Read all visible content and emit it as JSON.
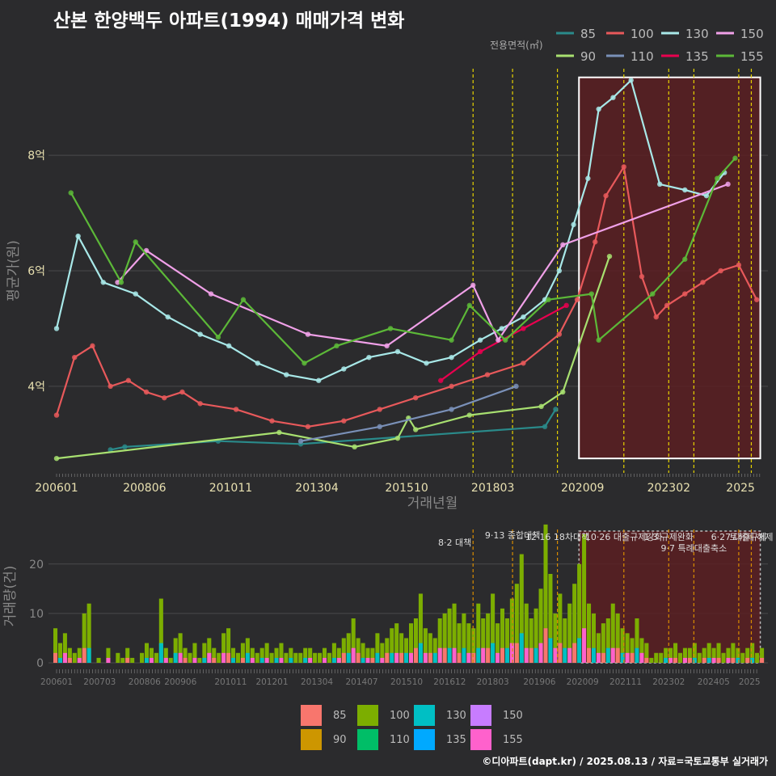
{
  "title": "산본 한양백두 아파트(1994) 매매가격 변화",
  "legend_title": "전용면적(㎡)",
  "footer": "©디아파트(dapt.kr) / 2025.08.13 / 자료=국토교통부 실거래가",
  "colors": {
    "background": "#2b2b2d",
    "grid": "#4a4a4c",
    "policy_line": "#e6d200",
    "policy_line_bottom": "#d98c00",
    "highlight_fill": "#5a1f22",
    "highlight_border": "#ffffff"
  },
  "chart_data": [
    {
      "type": "line",
      "title": "산본 한양백두 아파트(1994) 매매가격 변화",
      "xlabel": "거래년월",
      "ylabel": "평균가(원)",
      "x_ticks": [
        "200601",
        "200806",
        "201011",
        "201304",
        "201510",
        "201803",
        "202009",
        "202302",
        "2025"
      ],
      "y_ticks": [
        "4억",
        "6억",
        "8억"
      ],
      "ylim": [
        2.5,
        9.5
      ],
      "y_unit": "억",
      "legend_placement": "top-right",
      "series": [
        {
          "name": "85",
          "color": "#2a8a8a",
          "x": [
            2007.5,
            2007.9,
            2010.5,
            2012.8,
            2019.6,
            2019.9
          ],
          "y": [
            2.9,
            2.95,
            3.05,
            3.0,
            3.3,
            3.6
          ]
        },
        {
          "name": "90",
          "color": "#a8e070",
          "x": [
            2006.0,
            2012.2,
            2014.3,
            2015.5,
            2015.8,
            2016.0,
            2017.5,
            2019.5,
            2020.1,
            2021.4
          ],
          "y": [
            2.75,
            3.2,
            2.95,
            3.1,
            3.45,
            3.25,
            3.5,
            3.65,
            3.9,
            6.25
          ]
        },
        {
          "name": "100",
          "color": "#e8595b",
          "x": [
            2006.0,
            2006.5,
            2007.0,
            2007.5,
            2008.0,
            2008.5,
            2009.0,
            2009.5,
            2010.0,
            2011.0,
            2012.0,
            2013.0,
            2014.0,
            2015.0,
            2016.0,
            2017.0,
            2018.0,
            2019.0,
            2020.0,
            2020.5,
            2021.0,
            2021.3,
            2021.8,
            2022.3,
            2022.7,
            2023.0,
            2023.5,
            2024.0,
            2024.5,
            2025.0,
            2025.5
          ],
          "y": [
            3.5,
            4.5,
            4.7,
            4.0,
            4.1,
            3.9,
            3.8,
            3.9,
            3.7,
            3.6,
            3.4,
            3.3,
            3.4,
            3.6,
            3.8,
            4.0,
            4.2,
            4.4,
            4.9,
            5.5,
            6.5,
            7.3,
            7.8,
            5.9,
            5.2,
            5.4,
            5.6,
            5.8,
            6.0,
            6.1,
            5.5
          ]
        },
        {
          "name": "110",
          "color": "#7a90b8",
          "x": [
            2012.8,
            2015.0,
            2017.0,
            2018.8
          ],
          "y": [
            3.05,
            3.3,
            3.6,
            4.0
          ]
        },
        {
          "name": "130",
          "color": "#a8e8e8",
          "x": [
            2006.0,
            2006.6,
            2007.3,
            2008.2,
            2009.1,
            2010.0,
            2010.8,
            2011.6,
            2012.4,
            2013.3,
            2014.0,
            2014.7,
            2015.5,
            2016.3,
            2017.0,
            2017.8,
            2018.4,
            2019.0,
            2019.6,
            2020.0,
            2020.4,
            2020.8,
            2021.1,
            2021.5,
            2022.0,
            2022.8,
            2023.5,
            2024.1,
            2024.6
          ],
          "y": [
            5.0,
            6.6,
            5.8,
            5.6,
            5.2,
            4.9,
            4.7,
            4.4,
            4.2,
            4.1,
            4.3,
            4.5,
            4.6,
            4.4,
            4.5,
            4.8,
            5.0,
            5.2,
            5.5,
            6.0,
            6.8,
            7.6,
            8.8,
            9.0,
            9.3,
            7.5,
            7.4,
            7.3,
            7.7
          ]
        },
        {
          "name": "135",
          "color": "#e8004f",
          "x": [
            2016.7,
            2017.8,
            2019.0,
            2020.2
          ],
          "y": [
            4.1,
            4.6,
            5.0,
            5.4
          ]
        },
        {
          "name": "150",
          "color": "#f0a0e8",
          "x": [
            2007.7,
            2008.5,
            2010.3,
            2013.0,
            2015.2,
            2017.6,
            2018.3,
            2020.1,
            2024.7
          ],
          "y": [
            5.8,
            6.35,
            5.6,
            4.9,
            4.7,
            5.75,
            4.8,
            6.45,
            7.5
          ]
        },
        {
          "name": "155",
          "color": "#5cb838",
          "x": [
            2006.4,
            2007.8,
            2008.2,
            2010.5,
            2011.2,
            2012.9,
            2013.8,
            2015.3,
            2017.0,
            2017.5,
            2018.5,
            2019.7,
            2020.9,
            2021.1,
            2022.6,
            2023.5,
            2024.4,
            2024.9
          ],
          "y": [
            7.35,
            5.8,
            6.5,
            4.85,
            5.5,
            4.4,
            4.7,
            5.0,
            4.8,
            5.4,
            4.8,
            5.5,
            5.6,
            4.8,
            5.6,
            6.2,
            7.6,
            7.95
          ]
        }
      ],
      "policy_markers": [
        {
          "x": 2017.6,
          "label": "8·2 대책"
        },
        {
          "x": 2018.7,
          "label": "9·13 종합대책"
        },
        {
          "x": 2019.95,
          "label": "12·16 18차대책"
        },
        {
          "x": 2021.8,
          "label": "10·26 대출규제강화"
        },
        {
          "x": 2023.05,
          "label": "1·3 규제완화"
        },
        {
          "x": 2023.75,
          "label": "9·7 특례대출축소"
        },
        {
          "x": 2025.0,
          "label": "6·27 대출규제"
        },
        {
          "x": 2025.35,
          "label": "토허제 해제"
        }
      ],
      "highlight_range": [
        "202007",
        "2025"
      ]
    },
    {
      "type": "bar",
      "xlabel": "",
      "ylabel": "거래량(건)",
      "x_ticks": [
        "200601",
        "200703",
        "200806",
        "200906",
        "201011",
        "201201",
        "201304",
        "201407",
        "201510",
        "201612",
        "201803",
        "201906",
        "202009",
        "202111",
        "202302",
        "202405",
        "2025"
      ],
      "y_ticks": [
        "0",
        "10",
        "20"
      ],
      "ylim": [
        0,
        27
      ],
      "stacked": true,
      "legend_placement": "bottom",
      "legend": [
        {
          "name": "85",
          "color": "#f8766d"
        },
        {
          "name": "90",
          "color": "#cd9600"
        },
        {
          "name": "100",
          "color": "#7cae00"
        },
        {
          "name": "110",
          "color": "#00be67"
        },
        {
          "name": "130",
          "color": "#00bfc4"
        },
        {
          "name": "135",
          "color": "#00a9ff"
        },
        {
          "name": "150",
          "color": "#c77cff"
        },
        {
          "name": "155",
          "color": "#ff61cc"
        }
      ],
      "volumes": [
        7,
        4,
        6,
        3,
        2,
        3,
        10,
        12,
        0,
        1,
        0,
        3,
        0,
        2,
        1,
        3,
        1,
        0,
        2,
        4,
        3,
        2,
        13,
        3,
        1,
        5,
        6,
        3,
        2,
        4,
        1,
        4,
        5,
        3,
        2,
        6,
        7,
        3,
        2,
        4,
        5,
        3,
        2,
        3,
        4,
        2,
        3,
        4,
        2,
        3,
        2,
        2,
        3,
        3,
        2,
        2,
        3,
        2,
        4,
        3,
        5,
        6,
        9,
        5,
        4,
        3,
        3,
        6,
        4,
        5,
        7,
        8,
        6,
        5,
        8,
        9,
        14,
        7,
        6,
        5,
        9,
        10,
        11,
        12,
        8,
        10,
        8,
        7,
        12,
        9,
        10,
        14,
        8,
        11,
        9,
        13,
        16,
        22,
        12,
        9,
        11,
        15,
        28,
        18,
        10,
        14,
        9,
        12,
        16,
        20,
        26,
        12,
        10,
        6,
        8,
        9,
        12,
        10,
        7,
        6,
        5,
        9,
        5,
        4,
        1,
        2,
        2,
        3,
        3,
        4,
        2,
        3,
        3,
        4,
        2,
        3,
        4,
        3,
        4,
        2,
        3,
        4,
        3,
        2,
        3,
        4,
        2,
        3
      ]
    }
  ]
}
